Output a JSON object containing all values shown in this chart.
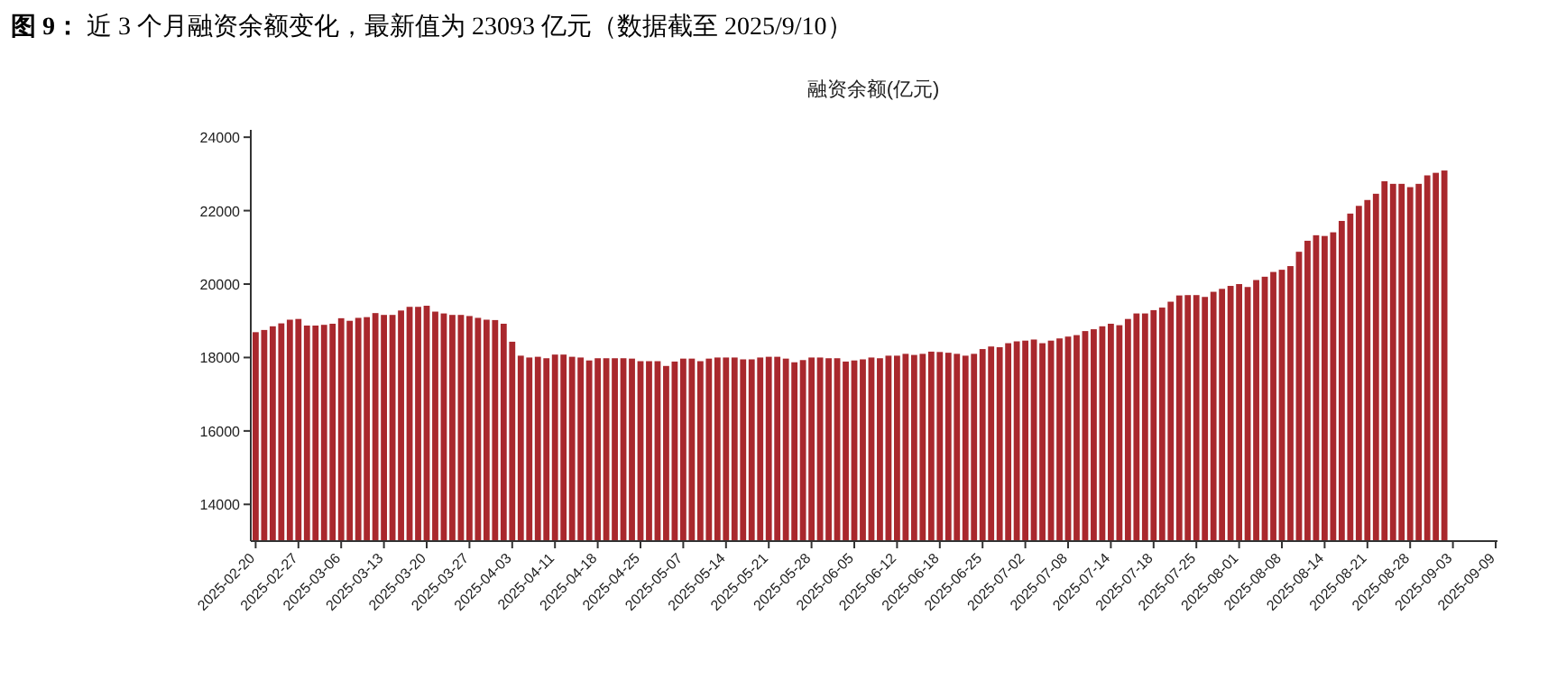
{
  "chart_data": {
    "type": "bar",
    "title": "**图 9：**  近 3 个月融资余额变化，最新值为 23093 亿元（数据截至 2025/9/10）",
    "subtitle": "融资余额(亿元)",
    "categories": [
      "2025-02-20",
      null,
      null,
      null,
      null,
      "2025-02-27",
      null,
      null,
      null,
      null,
      "2025-03-06",
      null,
      null,
      null,
      null,
      "2025-03-13",
      null,
      null,
      null,
      null,
      "2025-03-20",
      null,
      null,
      null,
      null,
      "2025-03-27",
      null,
      null,
      null,
      null,
      "2025-04-03",
      null,
      null,
      null,
      null,
      "2025-04-11",
      null,
      null,
      null,
      null,
      "2025-04-18",
      null,
      null,
      null,
      null,
      "2025-04-25",
      null,
      null,
      null,
      null,
      "2025-05-07",
      null,
      null,
      null,
      null,
      "2025-05-14",
      null,
      null,
      null,
      null,
      "2025-05-21",
      null,
      null,
      null,
      null,
      "2025-05-28",
      null,
      null,
      null,
      null,
      "2025-06-05",
      null,
      null,
      null,
      null,
      "2025-06-12",
      null,
      null,
      null,
      null,
      "2025-06-18",
      null,
      null,
      null,
      null,
      "2025-06-25",
      null,
      null,
      null,
      null,
      "2025-07-02",
      null,
      null,
      null,
      null,
      "2025-07-08",
      null,
      null,
      null,
      null,
      "2025-07-14",
      null,
      null,
      null,
      null,
      "2025-07-18",
      null,
      null,
      null,
      null,
      "2025-07-25",
      null,
      null,
      null,
      null,
      "2025-08-01",
      null,
      null,
      null,
      null,
      "2025-08-08",
      null,
      null,
      null,
      null,
      "2025-08-14",
      null,
      null,
      null,
      null,
      "2025-08-21",
      null,
      null,
      null,
      null,
      "2025-08-28",
      null,
      null,
      null,
      null,
      "2025-09-03",
      null,
      null,
      null,
      null,
      "2025-09-09"
    ],
    "values": [
      18690,
      18750,
      18850,
      18930,
      19030,
      19050,
      18870,
      18870,
      18890,
      18920,
      19070,
      19000,
      19080,
      19100,
      19210,
      19160,
      19160,
      19280,
      19380,
      19380,
      19410,
      19250,
      19200,
      19160,
      19160,
      19130,
      19080,
      19030,
      19020,
      18920,
      18430,
      18050,
      18000,
      18020,
      17980,
      18080,
      18080,
      18020,
      18000,
      17920,
      17980,
      17980,
      17980,
      17980,
      17970,
      17900,
      17900,
      17900,
      17770,
      17890,
      17970,
      17970,
      17900,
      17970,
      18000,
      18000,
      18000,
      17950,
      17950,
      18000,
      18020,
      18020,
      17970,
      17870,
      17930,
      18000,
      18000,
      17980,
      17980,
      17890,
      17920,
      17950,
      18000,
      17980,
      18050,
      18050,
      18100,
      18070,
      18100,
      18160,
      18150,
      18130,
      18100,
      18050,
      18100,
      18230,
      18300,
      18280,
      18390,
      18440,
      18460,
      18490,
      18390,
      18460,
      18520,
      18570,
      18610,
      18720,
      18770,
      18850,
      18920,
      18880,
      19050,
      19200,
      19200,
      19290,
      19360,
      19520,
      19690,
      19700,
      19700,
      19650,
      19790,
      19870,
      19950,
      20000,
      19920,
      20110,
      20200,
      20330,
      20390,
      20490,
      20880,
      21180,
      21330,
      21310,
      21410,
      21720,
      21920,
      22130,
      22290,
      22460,
      22800,
      22730,
      22730,
      22640,
      22730,
      22960,
      23030,
      23093,
      null,
      null,
      null,
      null,
      null,
      null
    ],
    "color": "#a9282d",
    "ylim": [
      13000,
      24200
    ],
    "yticks": [
      14000,
      16000,
      18000,
      20000,
      22000,
      24000
    ]
  }
}
